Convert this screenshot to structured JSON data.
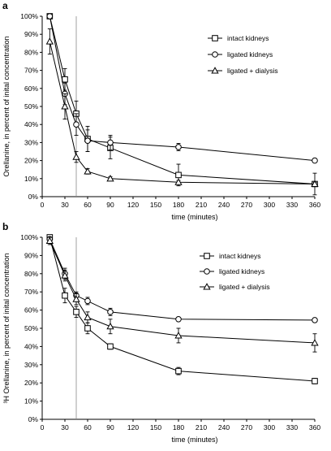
{
  "chart_data": [
    {
      "type": "line",
      "panel_label": "a",
      "xlabel": "time (minutes)",
      "ylabel": "Orellanine, in percent of inital concentration",
      "xlim": [
        0,
        360
      ],
      "ylim": [
        0,
        100
      ],
      "x_ticks": [
        0,
        30,
        60,
        90,
        120,
        150,
        180,
        210,
        240,
        270,
        300,
        330,
        360
      ],
      "y_ticks": [
        0,
        10,
        20,
        30,
        40,
        50,
        60,
        70,
        80,
        90,
        100
      ],
      "y_tick_format": "percent",
      "reference_line_x": 45,
      "legend_position": "top-right",
      "grid": false,
      "series": [
        {
          "name": "intact kidneys",
          "marker": "square",
          "x": [
            10,
            30,
            45,
            60,
            90,
            180,
            360
          ],
          "y": [
            100,
            65,
            46,
            32,
            27,
            12,
            7
          ],
          "err": [
            0,
            6,
            7,
            7,
            6,
            6,
            6
          ]
        },
        {
          "name": "ligated kidneys",
          "marker": "circle",
          "x": [
            10,
            30,
            45,
            60,
            90,
            180,
            360
          ],
          "y": [
            100,
            57,
            40,
            31,
            30,
            27.5,
            20
          ],
          "err": [
            0,
            6,
            6,
            6,
            4,
            2,
            1
          ]
        },
        {
          "name": "ligated + dialysis",
          "marker": "triangle",
          "x": [
            10,
            30,
            45,
            60,
            90,
            180,
            360
          ],
          "y": [
            86,
            50,
            22,
            14,
            10,
            8,
            7
          ],
          "err": [
            7,
            7,
            3,
            1.5,
            1,
            1,
            1
          ]
        }
      ]
    },
    {
      "type": "line",
      "panel_label": "b",
      "xlabel": "time (minutes)",
      "ylabel": "³H Orellanine, in percent of inital concentration",
      "xlim": [
        0,
        360
      ],
      "ylim": [
        0,
        100
      ],
      "x_ticks": [
        0,
        30,
        60,
        90,
        120,
        150,
        180,
        210,
        240,
        270,
        300,
        330,
        360
      ],
      "y_ticks": [
        0,
        10,
        20,
        30,
        40,
        50,
        60,
        70,
        80,
        90,
        100
      ],
      "y_tick_format": "percent",
      "reference_line_x": 45,
      "legend_position": "top-right",
      "grid": false,
      "series": [
        {
          "name": "intact kidneys",
          "marker": "square",
          "x": [
            10,
            30,
            45,
            60,
            90,
            180,
            360
          ],
          "y": [
            100,
            68,
            59,
            50,
            40,
            26.5,
            21
          ],
          "err": [
            1,
            4,
            3,
            3,
            1.5,
            2,
            1.5
          ]
        },
        {
          "name": "ligated kidneys",
          "marker": "circle",
          "x": [
            10,
            30,
            45,
            60,
            90,
            180,
            360
          ],
          "y": [
            99,
            80,
            68,
            65,
            59,
            55,
            54.5
          ],
          "err": [
            1,
            3,
            2,
            2,
            2,
            1,
            1
          ]
        },
        {
          "name": "ligated + dialysis",
          "marker": "triangle",
          "x": [
            10,
            30,
            45,
            60,
            90,
            180,
            360
          ],
          "y": [
            98,
            79,
            66,
            56,
            51,
            46,
            42
          ],
          "err": [
            2,
            3,
            3,
            3,
            4,
            4,
            5
          ]
        }
      ]
    }
  ]
}
